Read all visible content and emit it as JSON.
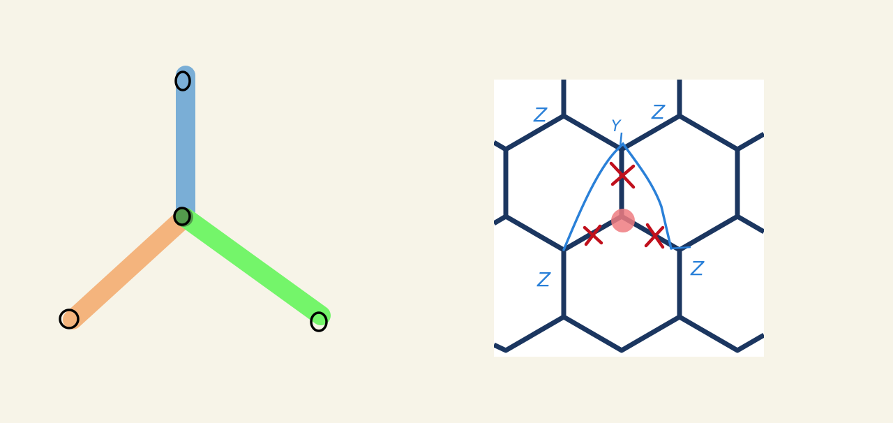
{
  "left_figure": {
    "bonds": [
      {
        "name": "upper-bond",
        "color": "#7aaed6"
      },
      {
        "name": "left-bond",
        "color": "#f4b47d"
      },
      {
        "name": "right-bond",
        "color": "#74f56a"
      }
    ],
    "node_style": {
      "stroke": "#000000",
      "fill": "none"
    }
  },
  "right_figure": {
    "lattice_color": "#1b3660",
    "loop_color": "#2a80d8",
    "cross_color": "#c0101c",
    "marker_color": "#ef7b80",
    "labels": {
      "top_left": "Z",
      "top_center": "Y",
      "top_right": "Z",
      "bottom_left": "Z",
      "bottom_right": "Z"
    }
  }
}
